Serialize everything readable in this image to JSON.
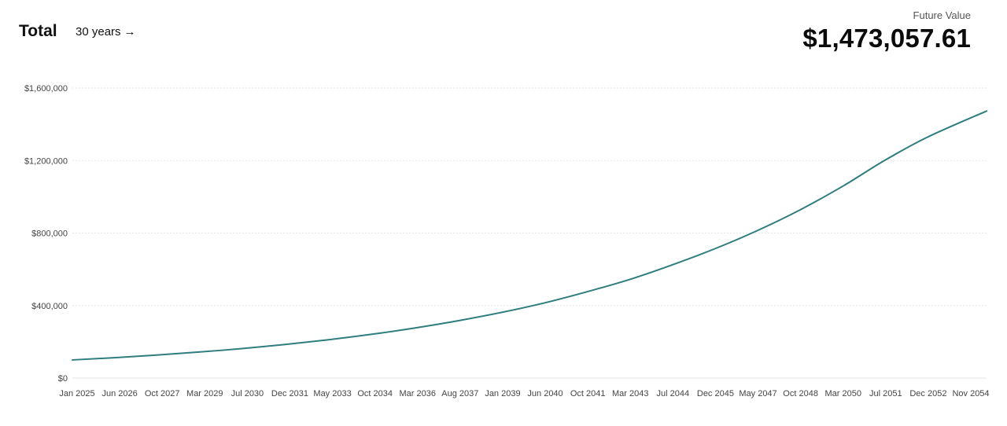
{
  "header": {
    "title": "Total",
    "range_label": "30 years",
    "range_arrow": "→",
    "future_value_label": "Future Value",
    "future_value": "$1,473,057.61"
  },
  "colors": {
    "line": "#2f7d7e",
    "grid": "#e6e6e6",
    "tick_text": "#444444"
  },
  "chart_data": {
    "type": "line",
    "title": "",
    "xlabel": "",
    "ylabel": "",
    "ylim": [
      0,
      1600000
    ],
    "y_ticks": [
      {
        "value": 0,
        "label": "$0"
      },
      {
        "value": 400000,
        "label": "$400,000"
      },
      {
        "value": 800000,
        "label": "$800,000"
      },
      {
        "value": 1200000,
        "label": "$1,200,000"
      },
      {
        "value": 1600000,
        "label": "$1,600,000"
      }
    ],
    "x_range": [
      "2025-01",
      "2054-11"
    ],
    "x_ticks": [
      "Jan 2025",
      "Jun 2026",
      "Oct 2027",
      "Mar 2029",
      "Jul 2030",
      "Dec 2031",
      "May 2033",
      "Oct 2034",
      "Mar 2036",
      "Aug 2037",
      "Jan 2039",
      "Jun 2040",
      "Oct 2041",
      "Mar 2043",
      "Jul 2044",
      "Dec 2045",
      "May 2047",
      "Oct 2048",
      "Mar 2050",
      "Jul 2051",
      "Dec 2052",
      "Nov 2054"
    ],
    "grid": true,
    "legend": "none",
    "series": [
      {
        "x": [
          "2025-01",
          "2026-06",
          "2027-10",
          "2029-03",
          "2030-07",
          "2031-12",
          "2033-05",
          "2034-10",
          "2036-03",
          "2037-08",
          "2039-01",
          "2040-06",
          "2041-10",
          "2043-03",
          "2044-07",
          "2045-12",
          "2047-05",
          "2048-10",
          "2050-03",
          "2051-07",
          "2052-12",
          "2054-11"
        ],
        "values": [
          100000,
          113000,
          127000,
          144000,
          162000,
          185000,
          211000,
          241000,
          276000,
          316000,
          362000,
          415000,
          474000,
          543000,
          620000,
          710000,
          812000,
          928000,
          1061000,
          1200000,
          1330000,
          1473057.61
        ]
      }
    ]
  }
}
